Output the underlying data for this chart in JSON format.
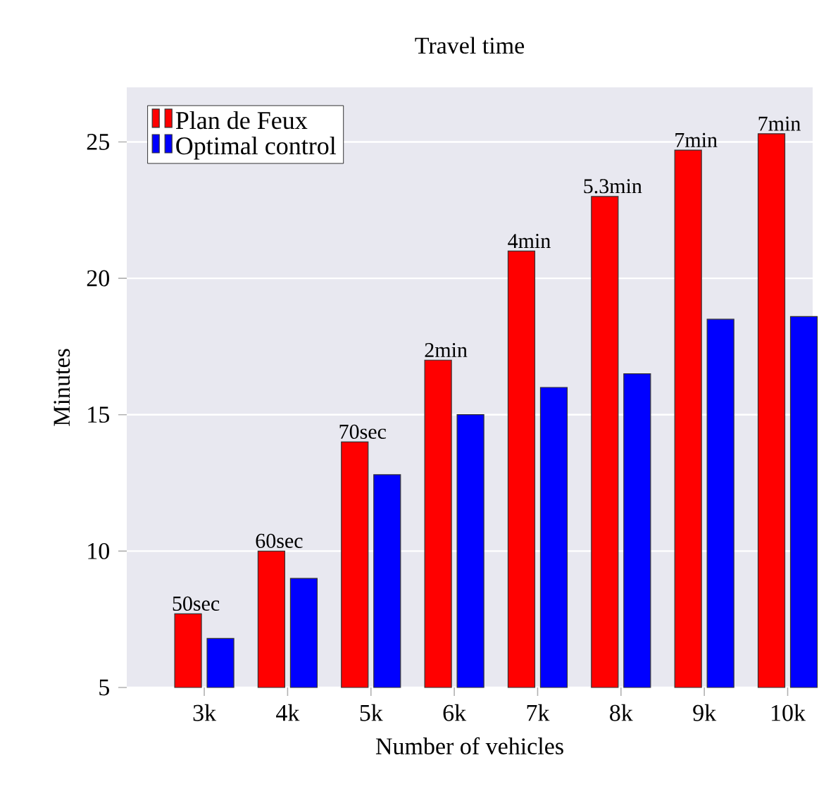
{
  "chart_data": {
    "type": "bar",
    "title": "Travel time",
    "xlabel": "Number of vehicles",
    "ylabel": "Minutes",
    "categories": [
      "3k",
      "4k",
      "5k",
      "6k",
      "7k",
      "8k",
      "9k",
      "10k"
    ],
    "series": [
      {
        "name": "Plan de Feux",
        "color": "#ff0000",
        "values": [
          7.7,
          10,
          14,
          17,
          21,
          23,
          24.7,
          25.3
        ]
      },
      {
        "name": "Optimal control",
        "color": "#0000ff",
        "values": [
          6.8,
          9,
          12.8,
          15,
          16,
          16.5,
          18.5,
          18.6
        ]
      }
    ],
    "annotations": [
      {
        "text": "50sec",
        "x": "3k",
        "y": 7.7
      },
      {
        "text": "60sec",
        "x": "4k",
        "y": 10
      },
      {
        "text": "70sec",
        "x": "5k",
        "y": 14
      },
      {
        "text": "2min",
        "x": "6k",
        "y": 17
      },
      {
        "text": "4min",
        "x": "7k",
        "y": 21
      },
      {
        "text": "5.3min",
        "x": "8k",
        "y": 23
      },
      {
        "text": "7min",
        "x": "9k",
        "y": 24.7
      },
      {
        "text": "7min",
        "x": "10k",
        "y": 25.3
      }
    ],
    "ylim": [
      5,
      27
    ],
    "yticks": [
      5,
      10,
      15,
      20,
      25
    ],
    "grid": "y",
    "legend": "top left"
  }
}
